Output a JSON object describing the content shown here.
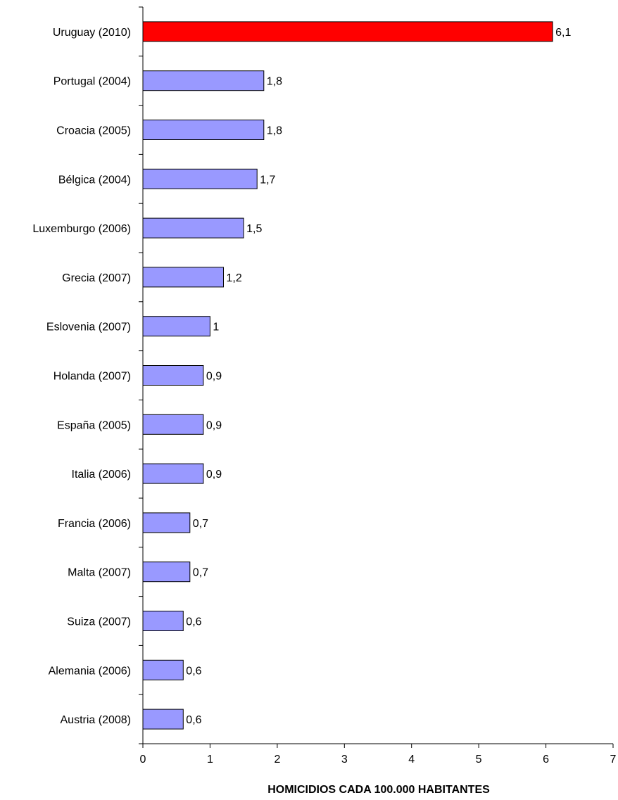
{
  "chart_data": {
    "type": "bar",
    "orientation": "horizontal",
    "categories": [
      "Uruguay (2010)",
      "Portugal (2004)",
      "Croacia (2005)",
      "Bélgica (2004)",
      "Luxemburgo (2006)",
      "Grecia (2007)",
      "Eslovenia (2007)",
      "Holanda (2007)",
      "España (2005)",
      "Italia (2006)",
      "Francia (2006)",
      "Malta (2007)",
      "Suiza (2007)",
      "Alemania (2006)",
      "Austria (2008)"
    ],
    "values": [
      6.1,
      1.8,
      1.8,
      1.7,
      1.5,
      1.2,
      1,
      0.9,
      0.9,
      0.9,
      0.7,
      0.7,
      0.6,
      0.6,
      0.6
    ],
    "value_labels": [
      "6,1",
      "1,8",
      "1,8",
      "1,7",
      "1,5",
      "1,2",
      "1",
      "0,9",
      "0,9",
      "0,9",
      "0,7",
      "0,7",
      "0,6",
      "0,6",
      "0,6"
    ],
    "highlight_index": 0,
    "colors": {
      "default": "#9999ff",
      "highlight": "#ff0000",
      "border": "#000000"
    },
    "xlim": [
      0,
      7
    ],
    "xticks": [
      "0",
      "1",
      "2",
      "3",
      "4",
      "5",
      "6",
      "7"
    ],
    "xlabel": "HOMICIDIOS CADA 100.000 HABITANTES",
    "ylabel": "",
    "title": "",
    "grid": false
  }
}
